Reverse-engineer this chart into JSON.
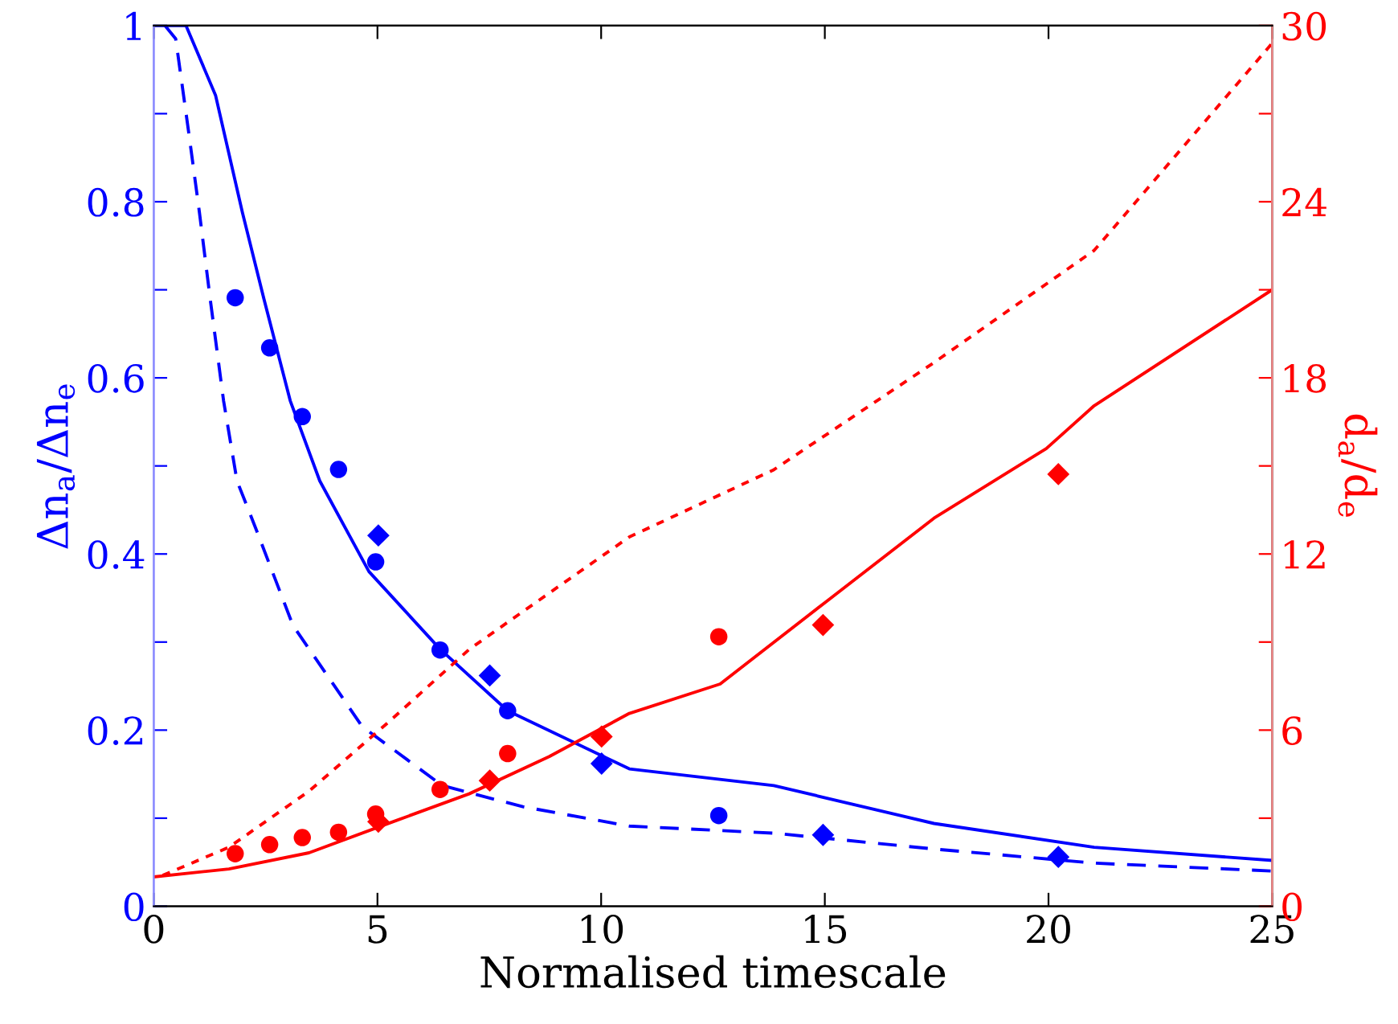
{
  "chart_data": {
    "type": "line",
    "xlabel": "Normalised timescale",
    "ylabel": "Δn$_{a}$/Δn$_{e}$",
    "y2label": "d$_{a}$/d$_{e}$",
    "xlim": [
      0,
      25
    ],
    "xticks": [
      0,
      5,
      10,
      15,
      20,
      25
    ],
    "ylim": [
      0,
      1
    ],
    "yticks": [
      0,
      {
        "value": 0.1,
        "label": null
      },
      0.2,
      {
        "value": 0.3,
        "label": null
      },
      0.4,
      {
        "value": 0.5,
        "label": null
      },
      0.6,
      {
        "value": 0.7,
        "label": null
      },
      0.8,
      {
        "value": 0.9,
        "label": null
      },
      1
    ],
    "y2lim": [
      0,
      30
    ],
    "y2ticks": [
      0,
      {
        "value": 3,
        "label": null
      },
      6,
      {
        "value": 9,
        "label": null
      },
      12,
      {
        "value": 15,
        "label": null
      },
      18,
      {
        "value": 21,
        "label": null
      },
      24,
      {
        "value": 27,
        "label": null
      },
      30
    ],
    "grid": false,
    "legend": false,
    "series": [
      {
        "color": "#0000ff",
        "line_style": "solid",
        "marker": "none",
        "x": [
          0,
          0.72,
          1.38,
          1.98,
          2.46,
          3.05,
          3.71,
          4.81,
          6.4,
          7.91,
          10.63,
          13.86,
          17.44,
          21.02,
          25
        ],
        "values": [
          1,
          1,
          0.921,
          0.788,
          0.69,
          0.574,
          0.483,
          0.38,
          0.292,
          0.222,
          0.156,
          0.137,
          0.094,
          0.067,
          0.052
        ]
      },
      {
        "color": "#0000ff",
        "line_style": "dashed",
        "marker": "none",
        "x": [
          0.25,
          0.49,
          0.78,
          1.02,
          1.26,
          1.56,
          1.86,
          2.28,
          3.11,
          4.66,
          6.45,
          8.25,
          10.63,
          13.86,
          17.44,
          21.02,
          25
        ],
        "values": [
          1,
          0.985,
          0.879,
          0.788,
          0.69,
          0.574,
          0.483,
          0.429,
          0.319,
          0.204,
          0.137,
          0.113,
          0.091,
          0.083,
          0.065,
          0.049,
          0.04
        ]
      },
      {
        "type": "scatter",
        "color": "#0000ff",
        "marker": "circle",
        "x": [
          1.82,
          2.59,
          3.32,
          4.13,
          4.96,
          6.4,
          7.91,
          12.63
        ],
        "values": [
          0.691,
          0.634,
          0.556,
          0.496,
          0.391,
          0.291,
          0.222,
          0.103
        ]
      },
      {
        "type": "scatter",
        "color": "#0000ff",
        "marker": "diamond",
        "x": [
          5.02,
          7.51,
          10.01,
          14.96,
          20.22
        ],
        "values": [
          0.421,
          0.262,
          0.162,
          0.081,
          0.056
        ]
      },
      {
        "axis": "y2",
        "color": "#ff0000",
        "line_style": "solid",
        "marker": "none",
        "x": [
          0,
          1.68,
          3.47,
          5.26,
          7.05,
          8.84,
          10.63,
          12.66,
          15.05,
          17.44,
          19.95,
          21.02,
          25
        ],
        "values": [
          1,
          1.27,
          1.82,
          2.83,
          3.83,
          5.1,
          6.57,
          7.57,
          10.4,
          13.22,
          15.59,
          17.05,
          21
        ]
      },
      {
        "axis": "y2",
        "color": "#ff0000",
        "line_style": "dotted",
        "marker": "none",
        "x": [
          0.2,
          1.68,
          3.47,
          5.26,
          7.05,
          8.84,
          10.63,
          13.86,
          17.44,
          21.02,
          25
        ],
        "values": [
          1.05,
          2.01,
          3.92,
          6.29,
          8.75,
          10.67,
          12.58,
          14.87,
          18.52,
          22.34,
          29.4
        ]
      },
      {
        "type": "scatter",
        "axis": "y2",
        "color": "#ff0000",
        "marker": "circle",
        "x": [
          1.82,
          2.59,
          3.32,
          4.13,
          4.96,
          6.4,
          7.91,
          12.63
        ],
        "values": [
          1.79,
          2.1,
          2.34,
          2.52,
          3.14,
          3.98,
          5.2,
          9.18
        ]
      },
      {
        "type": "scatter",
        "axis": "y2",
        "color": "#ff0000",
        "marker": "diamond",
        "x": [
          5.02,
          7.51,
          10.01,
          14.96,
          20.22
        ],
        "values": [
          2.88,
          4.28,
          5.78,
          9.58,
          14.72
        ]
      }
    ]
  }
}
